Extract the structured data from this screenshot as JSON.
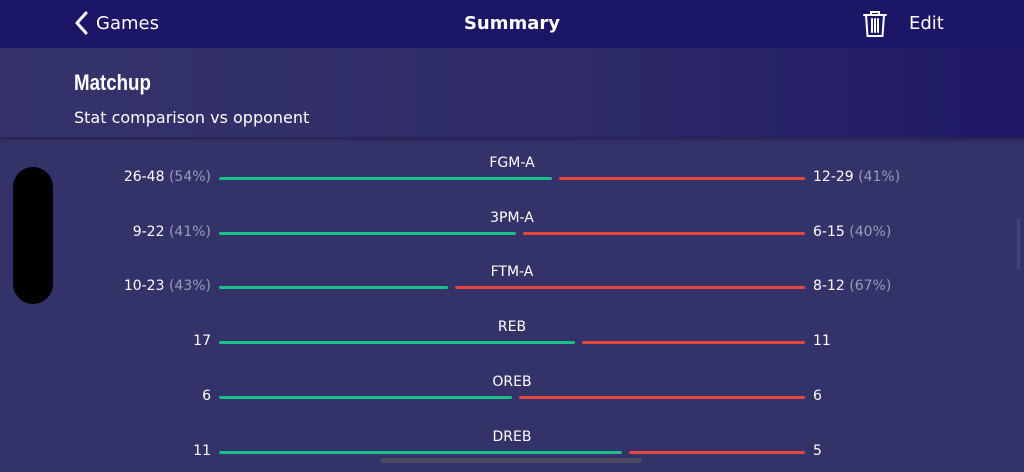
{
  "nav": {
    "back_label": "Games",
    "title": "Summary",
    "edit_label": "Edit",
    "trash_icon": "trash-icon",
    "back_icon": "chevron-left-icon"
  },
  "header": {
    "title": "Matchup",
    "subtitle": "Stat comparison vs opponent"
  },
  "colors": {
    "team": "#1bbf8a",
    "opponent": "#e8453c",
    "nav_bg": "#1c1666",
    "body_bg": "#33336a"
  },
  "stats": [
    {
      "label": "FGM-A",
      "left": "26-48",
      "left_pct": "(54%)",
      "right": "12-29",
      "right_pct": "(41%)"
    },
    {
      "label": "3PM-A",
      "left": "9-22",
      "left_pct": "(41%)",
      "right": "6-15",
      "right_pct": "(40%)"
    },
    {
      "label": "FTM-A",
      "left": "10-23",
      "left_pct": "(43%)",
      "right": "8-12",
      "right_pct": "(67%)"
    },
    {
      "label": "REB",
      "left": "17",
      "left_pct": "",
      "right": "11",
      "right_pct": ""
    },
    {
      "label": "OREB",
      "left": "6",
      "left_pct": "",
      "right": "6",
      "right_pct": ""
    },
    {
      "label": "DREB",
      "left": "11",
      "left_pct": "",
      "right": "5",
      "right_pct": ""
    }
  ]
}
